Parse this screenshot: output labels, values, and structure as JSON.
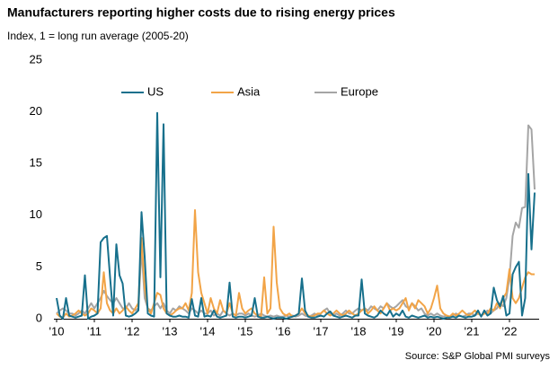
{
  "chart_data": {
    "type": "line",
    "title": "Manufacturers reporting higher costs due to rising energy prices",
    "subtitle": "Index, 1 = long run average (2005-20)",
    "source": "Source: S&P Global PMI surveys",
    "categories": [
      "'10",
      null,
      null,
      null,
      null,
      null,
      null,
      null,
      null,
      null,
      null,
      null,
      "'11",
      null,
      null,
      null,
      null,
      null,
      null,
      null,
      null,
      null,
      null,
      null,
      "'12",
      null,
      null,
      null,
      null,
      null,
      null,
      null,
      null,
      null,
      null,
      null,
      "'13",
      null,
      null,
      null,
      null,
      null,
      null,
      null,
      null,
      null,
      null,
      null,
      "'14",
      null,
      null,
      null,
      null,
      null,
      null,
      null,
      null,
      null,
      null,
      null,
      "'15",
      null,
      null,
      null,
      null,
      null,
      null,
      null,
      null,
      null,
      null,
      null,
      "'16",
      null,
      null,
      null,
      null,
      null,
      null,
      null,
      null,
      null,
      null,
      null,
      "'17",
      null,
      null,
      null,
      null,
      null,
      null,
      null,
      null,
      null,
      null,
      null,
      "'18",
      null,
      null,
      null,
      null,
      null,
      null,
      null,
      null,
      null,
      null,
      null,
      "'19",
      null,
      null,
      null,
      null,
      null,
      null,
      null,
      null,
      null,
      null,
      null,
      "'20",
      null,
      null,
      null,
      null,
      null,
      null,
      null,
      null,
      null,
      null,
      null,
      "'21",
      null,
      null,
      null,
      null,
      null,
      null,
      null,
      null,
      null,
      null,
      null,
      "'22",
      null,
      null,
      null,
      null,
      null,
      null,
      null,
      null
    ],
    "series": [
      {
        "name": "US",
        "color": "#17708c",
        "values": [
          2.0,
          0.3,
          0,
          2.0,
          0.3,
          0.2,
          0.1,
          0.2,
          0.3,
          4.2,
          0,
          0.2,
          0.3,
          0.5,
          7.4,
          7.8,
          8.0,
          4.0,
          0.3,
          7.2,
          4.2,
          3.4,
          0.3,
          0.2,
          0.3,
          0.5,
          0.8,
          10.3,
          6.0,
          0.5,
          0.3,
          0.2,
          19.9,
          4.0,
          18.8,
          0.5,
          0.3,
          0.2,
          0.2,
          0.3,
          0.2,
          0.2,
          0.1,
          1.9,
          0.3,
          0.2,
          2.0,
          0.2,
          0.3,
          0.2,
          0.8,
          0.2,
          0.1,
          0.2,
          0.3,
          3.5,
          0.2,
          0.1,
          0.2,
          0.2,
          0.1,
          0.2,
          0.3,
          2.0,
          0.2,
          0.1,
          0.1,
          0.2,
          0.1,
          0,
          0.1,
          0.1,
          0.1,
          0,
          0.1,
          0.2,
          0.3,
          0.5,
          3.9,
          0.8,
          0.2,
          0.1,
          0.1,
          0.2,
          0.3,
          0.2,
          0.5,
          0.7,
          0.3,
          0.2,
          0.1,
          0.2,
          0.3,
          0.2,
          0.1,
          0.3,
          0.3,
          3.8,
          0.5,
          0.3,
          0.2,
          0.1,
          0.3,
          0.8,
          0.5,
          0.3,
          0.8,
          0.2,
          0.5,
          0.3,
          0.8,
          0.2,
          0.1,
          0.3,
          0.2,
          0.1,
          0.2,
          0.3,
          0.1,
          0.2,
          0.1,
          0.2,
          0.1,
          0,
          0.1,
          0.1,
          0.2,
          0.1,
          0.3,
          0.2,
          0.1,
          0.2,
          0.2,
          0.3,
          0.8,
          0.2,
          0.8,
          0.3,
          0.5,
          3.0,
          1.8,
          1.2,
          2.2,
          0.3,
          0.5,
          4.3,
          5.0,
          5.5,
          0.3,
          2.0,
          14.0,
          6.7,
          12.2
        ]
      },
      {
        "name": "Asia",
        "color": "#f2a447",
        "values": [
          0.5,
          0.2,
          0.1,
          0.5,
          0.2,
          0.3,
          0.5,
          0.8,
          0.5,
          0.3,
          0.5,
          1.0,
          0.8,
          0.5,
          1.0,
          4.5,
          1.5,
          0.8,
          0.5,
          1.0,
          0.5,
          0.8,
          1.2,
          0.8,
          0.5,
          1.0,
          1.5,
          7.8,
          3.0,
          1.0,
          0.5,
          1.5,
          2.5,
          2.3,
          1.0,
          0.5,
          0.3,
          0.5,
          0.8,
          1.0,
          1.0,
          1.5,
          0.8,
          2.5,
          10.5,
          4.5,
          2.5,
          1.5,
          0.5,
          2.0,
          1.0,
          0.5,
          1.8,
          0.8,
          0.5,
          1.5,
          0.5,
          0.3,
          2.5,
          1.0,
          0.5,
          0.8,
          1.0,
          0.5,
          0.3,
          0.2,
          4.0,
          0.5,
          1.0,
          8.9,
          3.5,
          1.0,
          0.5,
          0.3,
          0.5,
          0.2,
          0.3,
          0.5,
          1.0,
          0.5,
          0.3,
          0.2,
          0.3,
          0.5,
          0.5,
          0.8,
          0.5,
          0.3,
          0.5,
          0.8,
          0.5,
          0.3,
          0.5,
          0.8,
          0.5,
          0.3,
          0.5,
          0.8,
          1.0,
          0.5,
          0.8,
          1.2,
          0.8,
          0.5,
          1.0,
          1.5,
          0.8,
          1.0,
          0.8,
          1.0,
          1.5,
          2.0,
          0.8,
          1.5,
          1.0,
          1.8,
          1.5,
          1.2,
          0.5,
          1.0,
          2.0,
          3.2,
          1.0,
          0.5,
          0.3,
          0.2,
          0.5,
          0.3,
          0.5,
          0.8,
          0.5,
          0.3,
          0.5,
          0.8,
          0.5,
          0.3,
          0.5,
          0.5,
          1.0,
          0.8,
          1.5,
          1.0,
          2.0,
          2.5,
          4.8,
          2.0,
          1.5,
          2.0,
          3.0,
          4.0,
          4.5,
          4.3,
          4.3
        ]
      },
      {
        "name": "Europe",
        "color": "#a5a5a5",
        "values": [
          0.5,
          0.8,
          1.0,
          0.8,
          0.5,
          0.5,
          0.3,
          0.5,
          0.8,
          0.5,
          1.0,
          1.5,
          1.0,
          1.5,
          2.0,
          2.7,
          2.2,
          1.8,
          1.5,
          2.0,
          1.5,
          1.0,
          1.0,
          1.5,
          1.0,
          0.8,
          1.0,
          6.8,
          2.0,
          1.0,
          0.8,
          1.2,
          1.5,
          1.0,
          1.5,
          0.8,
          0.5,
          1.0,
          0.8,
          1.2,
          1.0,
          0.8,
          0.5,
          1.0,
          0.8,
          0.5,
          0.8,
          0.5,
          0.5,
          0.8,
          0.3,
          0.5,
          0.3,
          0.8,
          0.5,
          0.3,
          0.5,
          0.3,
          0.5,
          0.5,
          0.3,
          0.5,
          0.3,
          0.2,
          0.3,
          0.5,
          0.3,
          0.2,
          0.3,
          0.2,
          0.3,
          0.2,
          0.2,
          0.3,
          0.2,
          0.3,
          0.2,
          0.3,
          0.5,
          0.3,
          0.2,
          0.3,
          0.5,
          0.3,
          0.5,
          0.8,
          1.0,
          0.5,
          0.3,
          0.5,
          0.3,
          0.5,
          0.8,
          0.5,
          0.5,
          0.8,
          1.0,
          0.8,
          1.0,
          0.8,
          1.2,
          1.0,
          0.8,
          1.2,
          1.0,
          1.5,
          1.2,
          1.0,
          1.2,
          1.5,
          1.8,
          1.2,
          1.0,
          1.5,
          1.2,
          0.8,
          1.0,
          0.5,
          0.3,
          0.5,
          0.3,
          0.5,
          0.3,
          0.2,
          0.3,
          0.2,
          0.3,
          0.5,
          0.3,
          0.2,
          0.3,
          0.5,
          0.5,
          0.3,
          0.5,
          0.3,
          0.5,
          0.8,
          0.5,
          0.8,
          1.0,
          1.5,
          1.2,
          2.0,
          4.0,
          8.0,
          9.3,
          8.8,
          10.7,
          10.8,
          18.7,
          18.3,
          12.5
        ]
      }
    ],
    "ylim": [
      0,
      25
    ],
    "yticks": [
      0,
      5,
      10,
      15,
      20,
      25
    ],
    "grid": false,
    "legend": "top"
  }
}
